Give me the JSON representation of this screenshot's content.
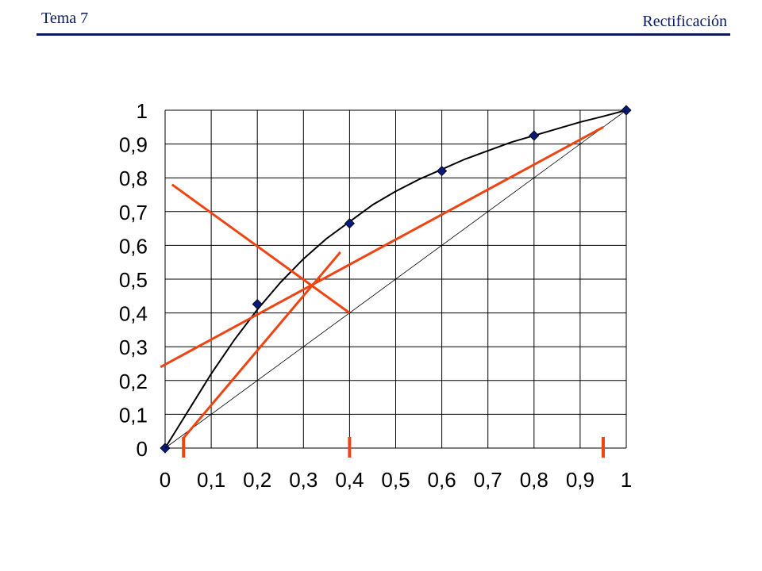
{
  "header": {
    "left": "Tema 7",
    "right": "Rectificación"
  },
  "chart_data": {
    "type": "line",
    "xlim": [
      0,
      1
    ],
    "ylim": [
      0,
      1
    ],
    "grid": true,
    "x_tick_labels": [
      "0",
      "0,1",
      "0,2",
      "0,3",
      "0,4",
      "0,5",
      "0,6",
      "0,7",
      "0,8",
      "0,9",
      "1"
    ],
    "y_tick_labels": [
      "0",
      "0,1",
      "0,2",
      "0,3",
      "0,4",
      "0,5",
      "0,6",
      "0,7",
      "0,8",
      "0,9",
      "1"
    ],
    "series": [
      {
        "style": "equilibrium-curve",
        "color": "#000000",
        "points": [
          [
            0,
            0
          ],
          [
            0.05,
            0.11
          ],
          [
            0.1,
            0.22
          ],
          [
            0.15,
            0.32
          ],
          [
            0.2,
            0.41
          ],
          [
            0.25,
            0.49
          ],
          [
            0.3,
            0.56
          ],
          [
            0.35,
            0.62
          ],
          [
            0.4,
            0.67
          ],
          [
            0.45,
            0.72
          ],
          [
            0.5,
            0.76
          ],
          [
            0.55,
            0.795
          ],
          [
            0.6,
            0.825
          ],
          [
            0.65,
            0.855
          ],
          [
            0.7,
            0.88
          ],
          [
            0.75,
            0.905
          ],
          [
            0.8,
            0.925
          ],
          [
            0.85,
            0.945
          ],
          [
            0.9,
            0.965
          ],
          [
            0.95,
            0.982
          ],
          [
            1,
            1
          ]
        ]
      },
      {
        "style": "data-markers",
        "color": "#0a1a7a",
        "points": [
          [
            0,
            0
          ],
          [
            0.2,
            0.426
          ],
          [
            0.4,
            0.665
          ],
          [
            0.6,
            0.82
          ],
          [
            0.8,
            0.925
          ],
          [
            1,
            1
          ]
        ]
      },
      {
        "style": "diagonal",
        "color": "#000000",
        "points": [
          [
            0,
            0
          ],
          [
            1,
            1
          ]
        ]
      },
      {
        "style": "feed-line",
        "color": "#ee4411",
        "points": [
          [
            0.015,
            0.78
          ],
          [
            0.4,
            0.4
          ]
        ]
      },
      {
        "style": "rectifying-line",
        "color": "#ee4411",
        "points": [
          [
            -0.01,
            0.24
          ],
          [
            0.95,
            0.95
          ]
        ]
      },
      {
        "style": "stripping-line",
        "color": "#ee4411",
        "points": [
          [
            0.04,
            0.03
          ],
          [
            0.38,
            0.58
          ]
        ]
      }
    ],
    "composition_markers": {
      "color": "#ee4411",
      "x": [
        0.04,
        0.4,
        0.95
      ]
    }
  }
}
